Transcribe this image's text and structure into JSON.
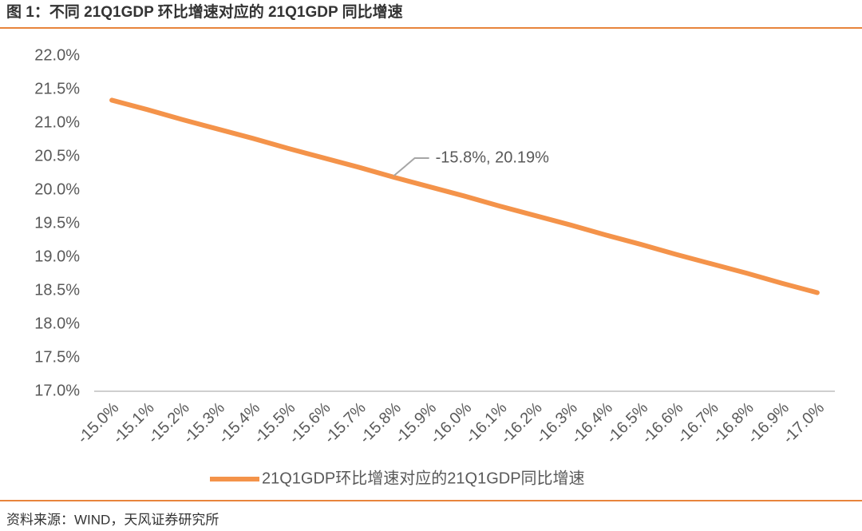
{
  "chart_data": {
    "type": "line",
    "title": "图 1：不同 21Q1GDP 环比增速对应的 21Q1GDP 同比增速",
    "source": "资料来源：WIND，天风证券研究所",
    "categories": [
      "-15.0%",
      "-15.1%",
      "-15.2%",
      "-15.3%",
      "-15.4%",
      "-15.5%",
      "-15.6%",
      "-15.7%",
      "-15.8%",
      "-15.9%",
      "-16.0%",
      "-16.1%",
      "-16.2%",
      "-16.3%",
      "-16.4%",
      "-16.5%",
      "-16.6%",
      "-16.7%",
      "-16.8%",
      "-16.9%",
      "-17.0%"
    ],
    "series": [
      {
        "name": "21Q1GDP环比增速对应的21Q1GDP同比增速",
        "color": "#f4934a",
        "values": [
          21.34,
          21.2,
          21.05,
          20.91,
          20.77,
          20.62,
          20.48,
          20.34,
          20.19,
          20.05,
          19.91,
          19.76,
          19.62,
          19.48,
          19.33,
          19.19,
          19.04,
          18.9,
          18.76,
          18.61,
          18.47
        ]
      }
    ],
    "ylim": [
      17,
      22
    ],
    "yticks": [
      {
        "value": 17,
        "label": "17.0%"
      },
      {
        "value": 17.5,
        "label": "17.5%"
      },
      {
        "value": 18,
        "label": "18.0%"
      },
      {
        "value": 18.5,
        "label": "18.5%"
      },
      {
        "value": 19,
        "label": "19.0%"
      },
      {
        "value": 19.5,
        "label": "19.5%"
      },
      {
        "value": 20,
        "label": "20.0%"
      },
      {
        "value": 20.5,
        "label": "20.5%"
      },
      {
        "value": 21,
        "label": "21.0%"
      },
      {
        "value": 21.5,
        "label": "21.5%"
      },
      {
        "value": 22,
        "label": "22.0%"
      }
    ],
    "annotations": [
      {
        "text": "-15.8%, 20.19%",
        "index": 8
      }
    ],
    "legend": "bottom"
  }
}
